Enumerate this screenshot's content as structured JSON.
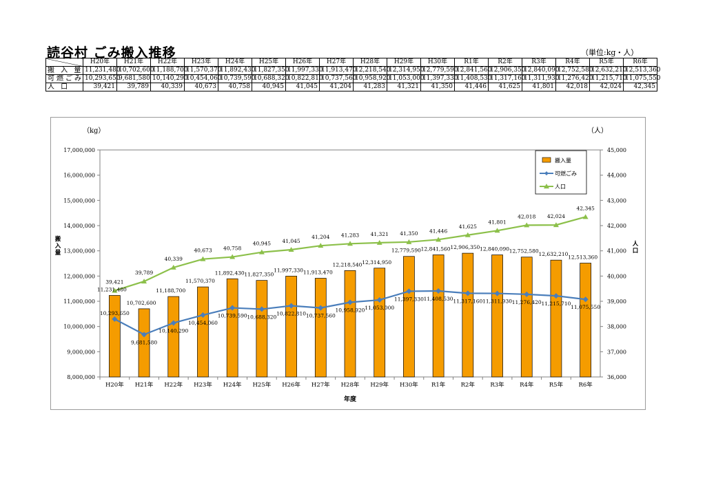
{
  "page": {
    "title": "読谷村 ごみ搬入推移",
    "unit_note": "（単位:kg・人）"
  },
  "table": {
    "years": [
      "H20年",
      "H21年",
      "H22年",
      "H23年",
      "H24年",
      "H25年",
      "H26年",
      "H27年",
      "H28年",
      "H29年",
      "H30年",
      "R1年",
      "R2年",
      "R3年",
      "R4年",
      "R5年",
      "R6年"
    ],
    "rows": [
      {
        "label": "搬 入 量",
        "values": [
          "11,231,480",
          "10,702,600",
          "11,188,700",
          "11,570,370",
          "11,892,430",
          "11,827,350",
          "11,997,330",
          "11,913,470",
          "12,218,540",
          "12,314,950",
          "12,779,590",
          "12,841,560",
          "12,906,350",
          "12,840,090",
          "12,752,580",
          "12,632,210",
          "12,513,360"
        ]
      },
      {
        "label": "可燃ごみ",
        "values": [
          "10,293,650",
          "9,681,580",
          "10,140,290",
          "10,454,060",
          "10,739,590",
          "10,688,320",
          "10,822,810",
          "10,737,560",
          "10,958,920",
          "11,053,000",
          "11,397,330",
          "11,408,530",
          "11,317,160",
          "11,311,930",
          "11,276,420",
          "11,215,710",
          "11,075,550"
        ]
      },
      {
        "label": "人 口",
        "values": [
          "39,421",
          "39,789",
          "40,339",
          "40,673",
          "40,758",
          "40,945",
          "41,045",
          "41,204",
          "41,283",
          "41,321",
          "41,350",
          "41,446",
          "41,625",
          "41,801",
          "42,018",
          "42,024",
          "42,345"
        ]
      }
    ]
  },
  "chart_data": {
    "type": "bar",
    "categories": [
      "H20年",
      "H21年",
      "H22年",
      "H23年",
      "H24年",
      "H25年",
      "H26年",
      "H27年",
      "H28年",
      "H29年",
      "H30年",
      "R1年",
      "R2年",
      "R3年",
      "R4年",
      "R5年",
      "R6年"
    ],
    "series": [
      {
        "name": "搬入量",
        "type": "bar",
        "axis": "left",
        "color": "#f59c00",
        "values": [
          11231480,
          10702600,
          11188700,
          11570370,
          11892430,
          11827350,
          11997330,
          11913470,
          12218540,
          12314950,
          12779590,
          12841560,
          12906350,
          12840090,
          12752580,
          12632210,
          12513360
        ],
        "labels": [
          "11,231,480",
          "10,702,600",
          "11,188,700",
          "11,570,370",
          "11,892,430",
          "11,827,350",
          "11,997,330",
          "11,913,470",
          "12,218,540",
          "12,314,950",
          "12,779,590",
          "12,841,560",
          "12,906,350",
          "12,840,090",
          "12,752,580",
          "12,632,210",
          "12,513,360"
        ]
      },
      {
        "name": "可燃ごみ",
        "type": "line",
        "axis": "left",
        "color": "#4a7ebb",
        "values": [
          10293650,
          9681580,
          10140290,
          10454060,
          10739590,
          10688320,
          10822810,
          10737560,
          10958920,
          11053000,
          11397330,
          11408530,
          11317160,
          11311930,
          11276420,
          11215710,
          11075550
        ],
        "labels": [
          "10,293,650",
          "9,681,580",
          "10,140,290",
          "10,454,060",
          "10,739,590",
          "10,688,320",
          "10,822,810",
          "10,737,560",
          "10,958,920",
          "11,053,000",
          "11,397,330",
          "11,408,530",
          "11,317,160",
          "11,311,930",
          "11,276,420",
          "11,215,710",
          "11,075,550"
        ]
      },
      {
        "name": "人口",
        "type": "line",
        "axis": "right",
        "color": "#8cc04a",
        "values": [
          39421,
          39789,
          40339,
          40673,
          40758,
          40945,
          41045,
          41204,
          41283,
          41321,
          41350,
          41446,
          41625,
          41801,
          42018,
          42024,
          42345
        ],
        "labels": [
          "39,421",
          "39,789",
          "40,339",
          "40,673",
          "40,758",
          "40,945",
          "41,045",
          "41,204",
          "41,283",
          "41,321",
          "41,350",
          "41,446",
          "41,625",
          "41,801",
          "42,018",
          "42,024",
          "42,345"
        ]
      }
    ],
    "left_axis": {
      "unit": "（kg）",
      "label": "搬入量",
      "ylim": [
        8000000,
        17000000
      ],
      "ticks": [
        "8,000,000",
        "9,000,000",
        "10,000,000",
        "11,000,000",
        "12,000,000",
        "13,000,000",
        "14,000,000",
        "15,000,000",
        "16,000,000",
        "17,000,000"
      ]
    },
    "right_axis": {
      "unit": "（人）",
      "label": "人口",
      "ylim": [
        36000,
        45000
      ],
      "ticks": [
        "36,000",
        "37,000",
        "38,000",
        "39,000",
        "40,000",
        "41,000",
        "42,000",
        "43,000",
        "44,000",
        "45,000"
      ]
    },
    "xlabel": "年度",
    "legend": {
      "placement": "top-right",
      "entries": [
        "搬入量",
        "可燃ごみ",
        "人口"
      ]
    },
    "grid": false
  }
}
